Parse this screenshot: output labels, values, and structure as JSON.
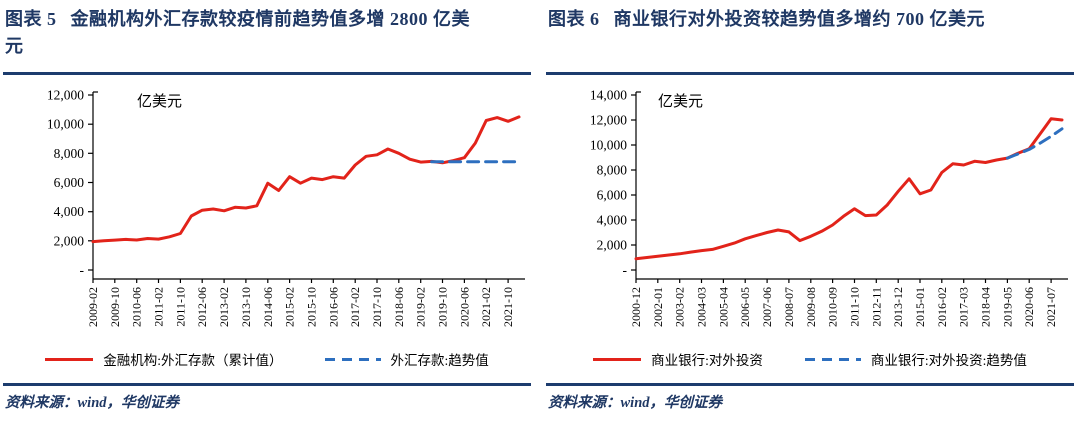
{
  "panels": [
    {
      "figure_label": "图表 5",
      "title": "金融机构外汇存款较疫情前趋势值多增 2800 亿美元",
      "source": "资料来源：wind，华创证券"
    },
    {
      "figure_label": "图表 6",
      "title": "商业银行对外投资较趋势值多增约 700 亿美元",
      "source": "资料来源：wind，华创证券"
    }
  ],
  "colors": {
    "caption_navy": "#1f3864",
    "rule_navy": "#1c3c6e",
    "series_red": "#e2231a",
    "trend_blue": "#2d6fbf",
    "axis_black": "#000000"
  },
  "chart_data": [
    {
      "type": "line",
      "ylabel_unit": "亿美元",
      "ylim": [
        0,
        12000
      ],
      "ystep": 2000,
      "zero_tick_label": "-",
      "grid": false,
      "legend_position": "bottom",
      "unit_x": 134,
      "points_per_tick": 2,
      "x_tick_labels": [
        "2009-02",
        "2009-10",
        "2010-06",
        "2011-02",
        "2011-10",
        "2012-06",
        "2013-02",
        "2013-10",
        "2014-06",
        "2015-02",
        "2015-10",
        "2016-06",
        "2017-02",
        "2017-10",
        "2018-06",
        "2019-02",
        "2019-10",
        "2020-06",
        "2021-02",
        "2021-10"
      ],
      "series": [
        {
          "name": "金融机构:外汇存款（累计值）",
          "style": "solid",
          "color": "#e2231a",
          "values": [
            1950,
            2000,
            2050,
            2100,
            2060,
            2160,
            2120,
            2280,
            2500,
            3700,
            4100,
            4180,
            4060,
            4300,
            4250,
            4400,
            5950,
            5450,
            6400,
            5950,
            6300,
            6200,
            6400,
            6300,
            7200,
            7800,
            7900,
            8300,
            8000,
            7600,
            7400,
            7450,
            7350,
            7500,
            7700,
            8700,
            10250,
            10450,
            10200,
            10500
          ]
        },
        {
          "name": "外汇存款:趋势值",
          "style": "dashed",
          "color": "#2d6fbf",
          "values": [
            null,
            null,
            null,
            null,
            null,
            null,
            null,
            null,
            null,
            null,
            null,
            null,
            null,
            null,
            null,
            null,
            null,
            null,
            null,
            null,
            null,
            null,
            null,
            null,
            null,
            null,
            null,
            null,
            null,
            null,
            null,
            7420,
            7420,
            7420,
            7420,
            7420,
            7420,
            7420,
            7420,
            7420
          ]
        }
      ]
    },
    {
      "type": "line",
      "ylabel_unit": "亿美元",
      "ylim": [
        0,
        14000
      ],
      "ystep": 2000,
      "zero_tick_label": "-",
      "grid": false,
      "legend_position": "bottom",
      "unit_x": 112,
      "points_per_tick": 2,
      "x_tick_labels": [
        "2000-12",
        "2002-01",
        "2003-02",
        "2004-03",
        "2005-04",
        "2006-05",
        "2007-06",
        "2008-07",
        "2009-08",
        "2010-09",
        "2011-10",
        "2012-11",
        "2013-12",
        "2015-01",
        "2016-02",
        "2017-03",
        "2018-04",
        "2019-05",
        "2020-06",
        "2021-07"
      ],
      "series": [
        {
          "name": "商业银行:对外投资",
          "style": "solid",
          "color": "#e2231a",
          "values": [
            900,
            1000,
            1100,
            1200,
            1300,
            1430,
            1550,
            1650,
            1900,
            2150,
            2500,
            2750,
            3000,
            3200,
            3050,
            2350,
            2700,
            3100,
            3600,
            4300,
            4900,
            4350,
            4400,
            5200,
            6300,
            7300,
            6100,
            6400,
            7800,
            8500,
            8400,
            8700,
            8600,
            8800,
            8950,
            9350,
            9700,
            10900,
            12100,
            12000
          ]
        },
        {
          "name": "商业银行:对外投资:趋势值",
          "style": "dashed",
          "color": "#2d6fbf",
          "values": [
            null,
            null,
            null,
            null,
            null,
            null,
            null,
            null,
            null,
            null,
            null,
            null,
            null,
            null,
            null,
            null,
            null,
            null,
            null,
            null,
            null,
            null,
            null,
            null,
            null,
            null,
            null,
            null,
            null,
            null,
            null,
            null,
            null,
            null,
            8950,
            9300,
            9650,
            10150,
            10700,
            11300
          ]
        }
      ]
    }
  ]
}
